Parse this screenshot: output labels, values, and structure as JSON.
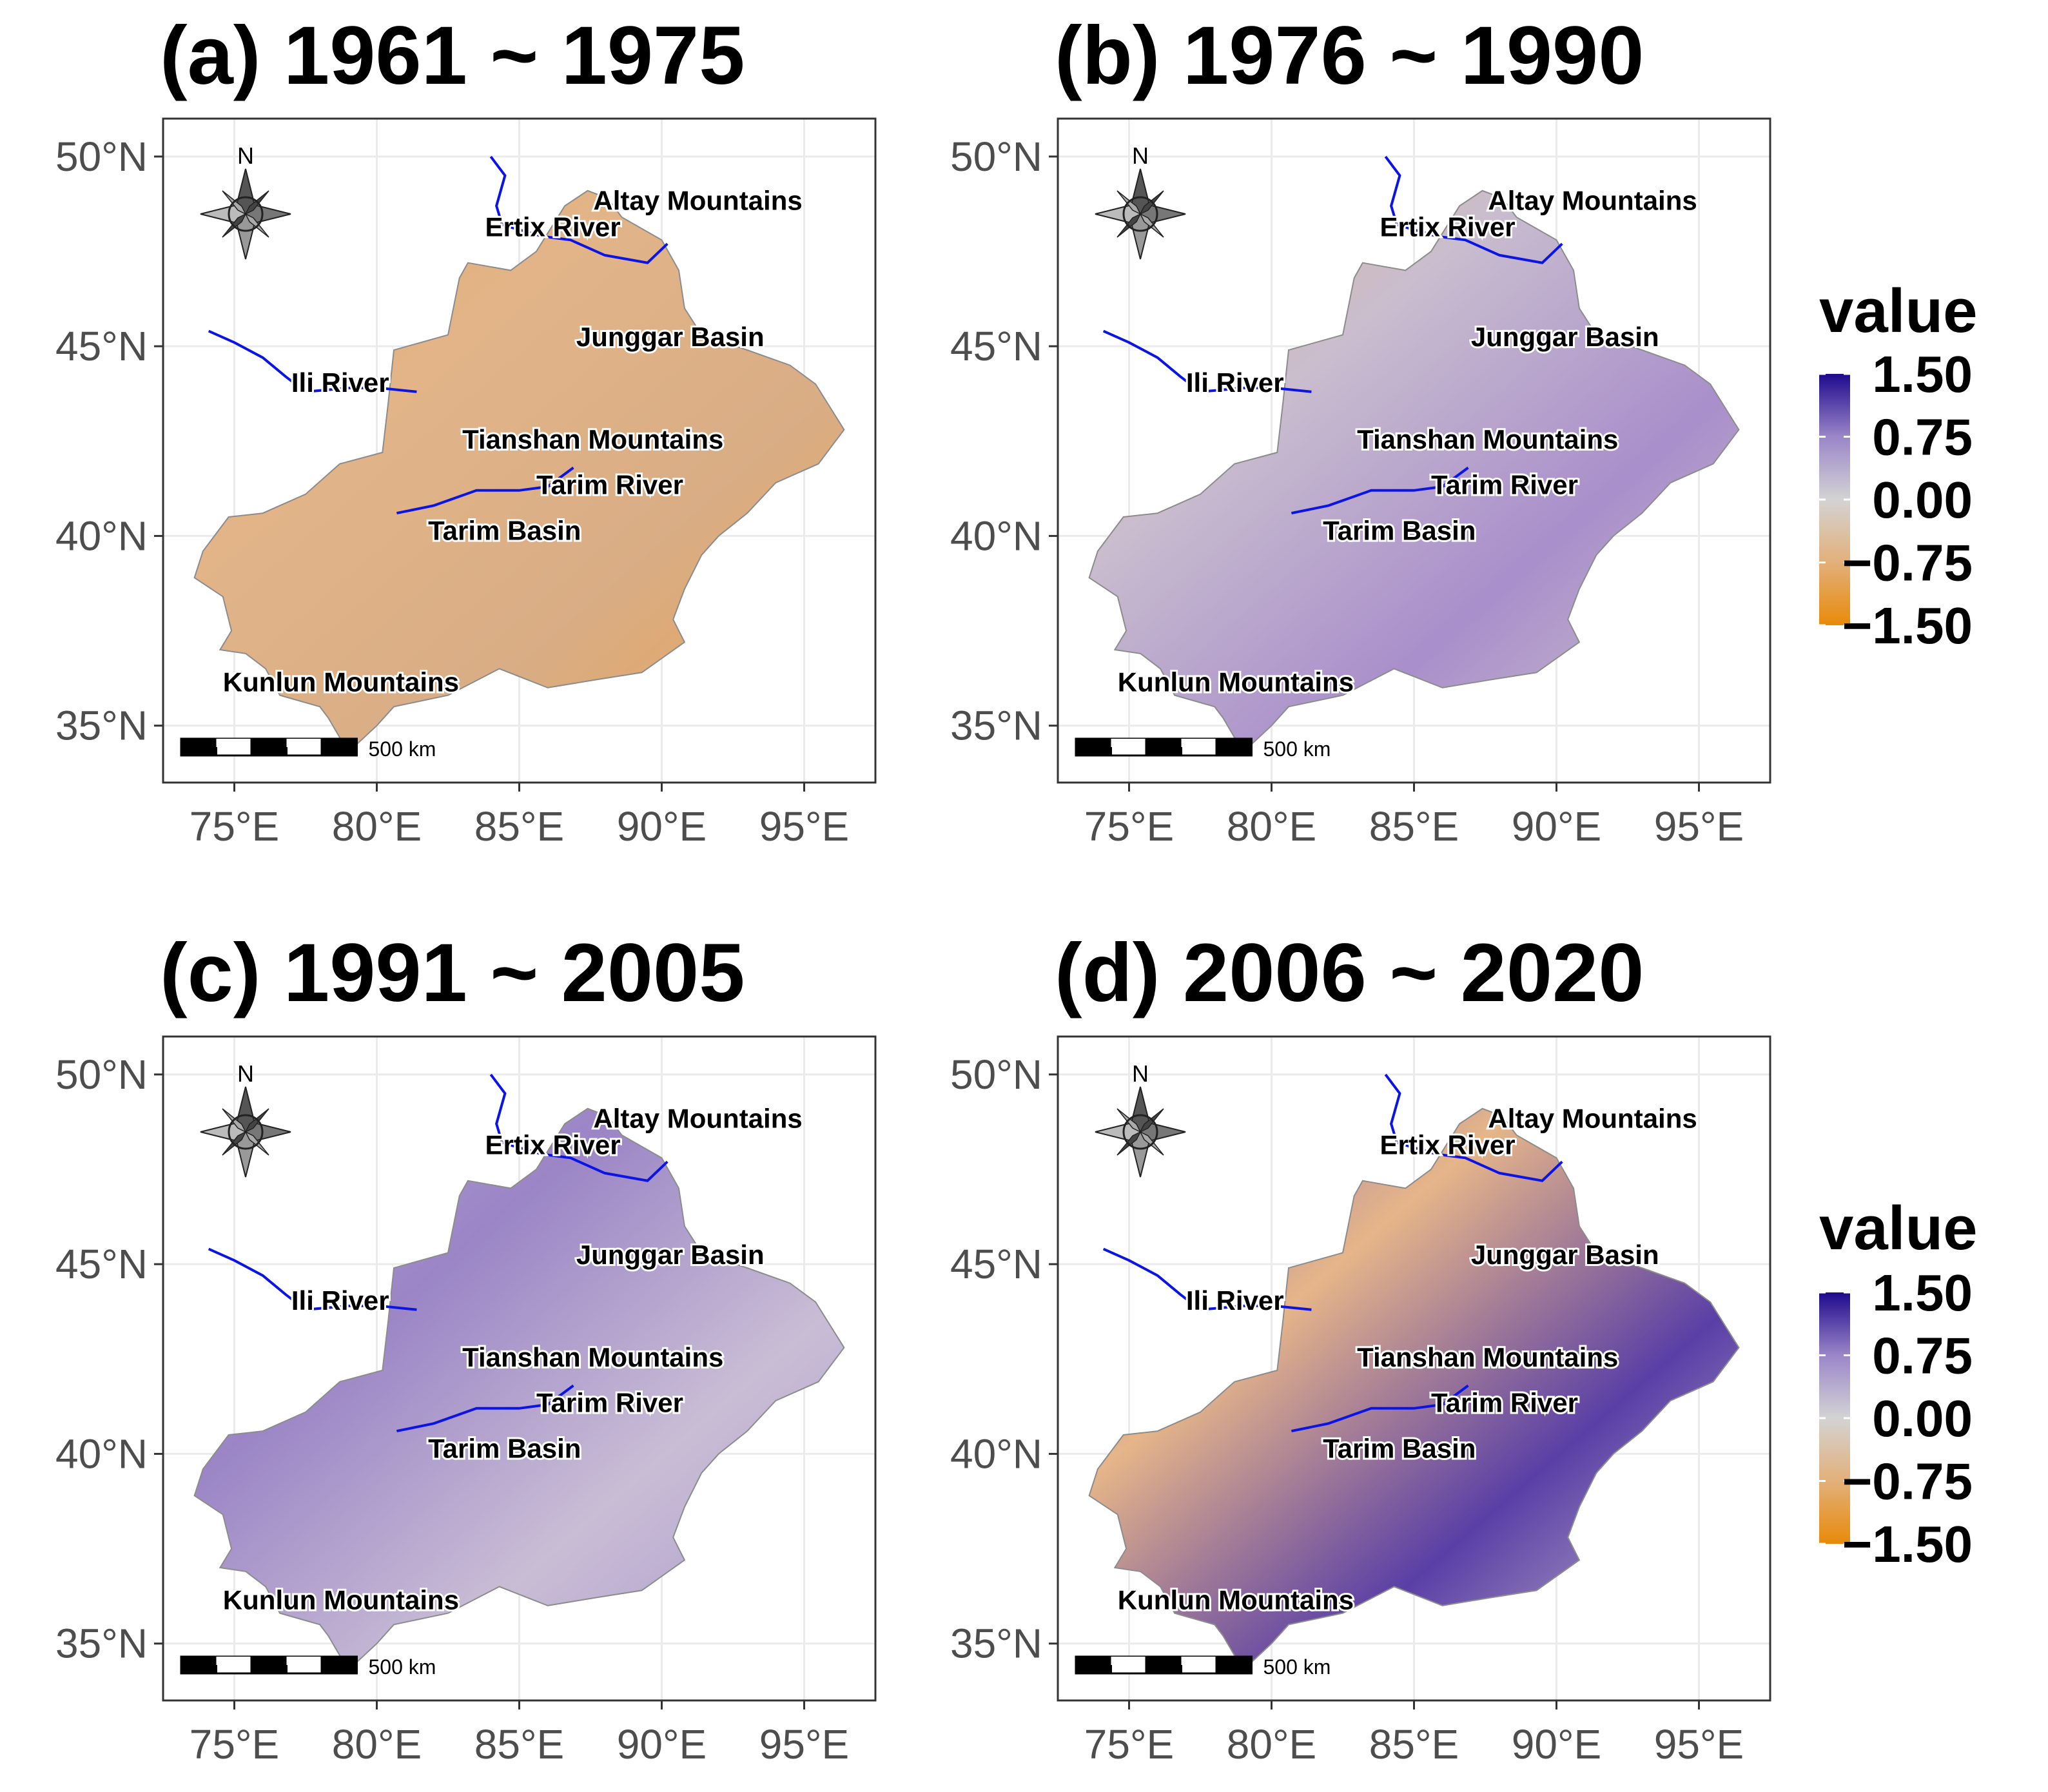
{
  "figure": {
    "axes": {
      "x_ticks": [
        {
          "value": 75,
          "label": "75°E"
        },
        {
          "value": 80,
          "label": "80°E"
        },
        {
          "value": 85,
          "label": "85°E"
        },
        {
          "value": 90,
          "label": "90°E"
        },
        {
          "value": 95,
          "label": "95°E"
        }
      ],
      "y_ticks": [
        {
          "value": 50,
          "label": "50°N"
        },
        {
          "value": 45,
          "label": "45°N"
        },
        {
          "value": 40,
          "label": "40°N"
        },
        {
          "value": 35,
          "label": "35°N"
        }
      ],
      "x_range": [
        72.5,
        97.5
      ],
      "y_range": [
        33.5,
        51.0
      ]
    },
    "panels": [
      {
        "id": "a",
        "title": "(a) 1961 ~ 1975",
        "fill_colors": [
          "#e8a963",
          "#e2b488",
          "#d9ad85",
          "#e8a352"
        ]
      },
      {
        "id": "b",
        "title": "(b) 1976 ~ 1990",
        "fill_colors": [
          "#e2b488",
          "#c9bdce",
          "#a98fcb",
          "#cfc5cc"
        ]
      },
      {
        "id": "c",
        "title": "(c) 1991 ~ 2005",
        "fill_colors": [
          "#b9a6d6",
          "#9b85c6",
          "#c9bdd5",
          "#a894cc"
        ]
      },
      {
        "id": "d",
        "title": "(d) 2006 ~ 2020",
        "fill_colors": [
          "#7b62b6",
          "#e6b589",
          "#5a3fa6",
          "#d2c8d0"
        ]
      }
    ],
    "place_labels": [
      {
        "text": "Altay Mountains",
        "lon": 87.6,
        "lat": 48.6
      },
      {
        "text": "Ertix River",
        "lon": 83.8,
        "lat": 47.9
      },
      {
        "text": "Junggar Basin",
        "lon": 87.0,
        "lat": 45.0
      },
      {
        "text": "Ili River",
        "lon": 77.0,
        "lat": 43.8
      },
      {
        "text": "Tianshan Mountains",
        "lon": 83.0,
        "lat": 42.3
      },
      {
        "text": "Tarim River",
        "lon": 85.6,
        "lat": 41.1
      },
      {
        "text": "Tarim Basin",
        "lon": 81.8,
        "lat": 39.9
      },
      {
        "text": "Kunlun Mountains",
        "lon": 74.6,
        "lat": 35.9
      }
    ],
    "scale_bar_label": "500 km",
    "north_label": "N",
    "legends": [
      {
        "title": "value",
        "ticks": [
          {
            "value": 1.5,
            "label": "1.50"
          },
          {
            "value": 0.75,
            "label": "0.75"
          },
          {
            "value": 0.0,
            "label": "0.00"
          },
          {
            "value": -0.75,
            "label": "−0.75"
          },
          {
            "value": -1.5,
            "label": "−1.50"
          }
        ],
        "colors": {
          "high": "#1e0a8c",
          "mid": "#d3d3d3",
          "low": "#e88a0a"
        }
      },
      {
        "title": "value",
        "ticks": [
          {
            "value": 1.5,
            "label": "1.50"
          },
          {
            "value": 0.75,
            "label": "0.75"
          },
          {
            "value": 0.0,
            "label": "0.00"
          },
          {
            "value": -0.75,
            "label": "−0.75"
          },
          {
            "value": -1.5,
            "label": "−1.50"
          }
        ],
        "colors": {
          "high": "#1e0a8c",
          "mid": "#d3d3d3",
          "low": "#e88a0a"
        }
      }
    ]
  }
}
